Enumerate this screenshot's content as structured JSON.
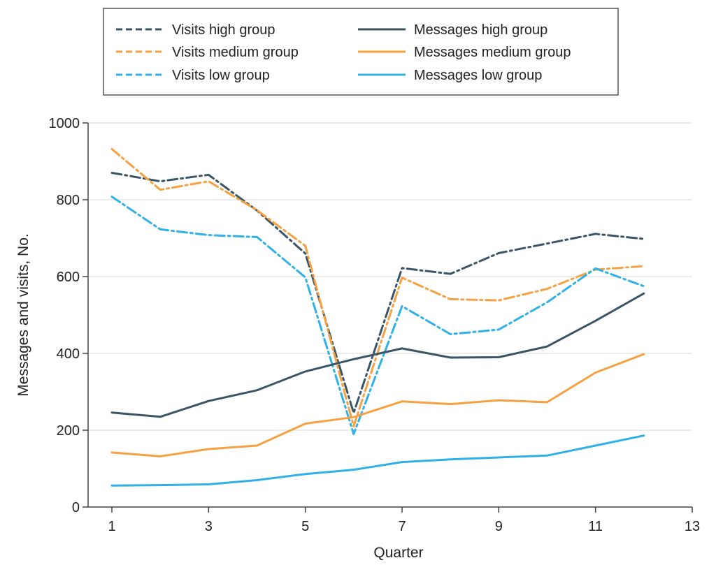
{
  "chart_data": {
    "type": "line",
    "title": "",
    "xlabel": "Quarter",
    "ylabel": "Messages and visits, No.",
    "xlim": [
      1,
      13
    ],
    "ylim": [
      0,
      1000
    ],
    "x_ticks": [
      1,
      3,
      5,
      7,
      9,
      11,
      13
    ],
    "y_ticks": [
      0,
      200,
      400,
      600,
      800,
      1000
    ],
    "grid": "horizontal",
    "legend_position": "top",
    "x": [
      1,
      2,
      3,
      4,
      5,
      6,
      7,
      8,
      9,
      10,
      11,
      12
    ],
    "series": [
      {
        "name": "Visits high group",
        "color": "#3a5566",
        "style": "dashed",
        "values": [
          870,
          848,
          865,
          772,
          660,
          245,
          622,
          607,
          661,
          686,
          711,
          698
        ]
      },
      {
        "name": "Visits medium group",
        "color": "#f5a142",
        "style": "dashed",
        "values": [
          932,
          826,
          848,
          773,
          680,
          210,
          597,
          541,
          538,
          568,
          618,
          627
        ]
      },
      {
        "name": "Visits low group",
        "color": "#2fb0e6",
        "style": "dashed",
        "values": [
          808,
          723,
          708,
          703,
          598,
          190,
          523,
          450,
          462,
          533,
          621,
          575
        ]
      },
      {
        "name": "Messages high group",
        "color": "#3a5566",
        "style": "solid",
        "values": [
          246,
          235,
          276,
          304,
          353,
          385,
          413,
          389,
          390,
          418,
          485,
          556
        ]
      },
      {
        "name": "Messages medium group",
        "color": "#f5a142",
        "style": "solid",
        "values": [
          142,
          132,
          151,
          160,
          217,
          234,
          275,
          268,
          278,
          273,
          350,
          398
        ]
      },
      {
        "name": "Messages low group",
        "color": "#2fb0e6",
        "style": "solid",
        "values": [
          56,
          57,
          59,
          70,
          86,
          97,
          117,
          124,
          129,
          134,
          160,
          186
        ]
      }
    ]
  }
}
